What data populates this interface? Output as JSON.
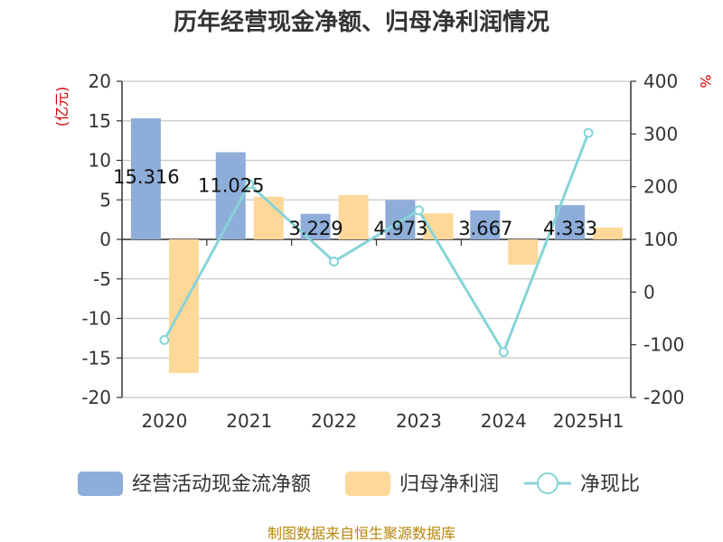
{
  "chart_data": {
    "type": "bar",
    "title": "历年经营现金净额、归母净利润情况",
    "categories": [
      "2020",
      "2021",
      "2022",
      "2023",
      "2024",
      "2025H1"
    ],
    "left_axis": {
      "unit": "(亿元)",
      "ylim": [
        -20,
        20
      ],
      "ticks": [
        "20",
        "15",
        "10",
        "5",
        "0",
        "-5",
        "-10",
        "-15",
        "-20"
      ]
    },
    "right_axis": {
      "unit": "%",
      "ylim": [
        -200,
        400
      ],
      "ticks": [
        "400",
        "300",
        "200",
        "100",
        "0",
        "-100",
        "-200"
      ]
    },
    "grid": true,
    "legend_position": "bottom",
    "series": [
      {
        "name": "经营活动现金流净额",
        "type": "bar",
        "axis": "left",
        "color": "#8eadd9",
        "values": [
          15.316,
          11.025,
          3.229,
          4.973,
          3.667,
          4.333
        ],
        "labels": [
          "15.316",
          "11.025",
          "3.229",
          "4.973",
          "3.667",
          "4.333"
        ]
      },
      {
        "name": "归母净利润",
        "type": "bar",
        "axis": "left",
        "color": "#fdd898",
        "values": [
          -16.9,
          5.4,
          5.6,
          3.3,
          -3.2,
          1.5
        ]
      },
      {
        "name": "净现比",
        "type": "line",
        "axis": "right",
        "color": "#86d4d8",
        "values": [
          -91,
          205,
          58,
          155,
          -114,
          302
        ]
      }
    ]
  },
  "source_text": "制图数据来自恒生聚源数据库"
}
